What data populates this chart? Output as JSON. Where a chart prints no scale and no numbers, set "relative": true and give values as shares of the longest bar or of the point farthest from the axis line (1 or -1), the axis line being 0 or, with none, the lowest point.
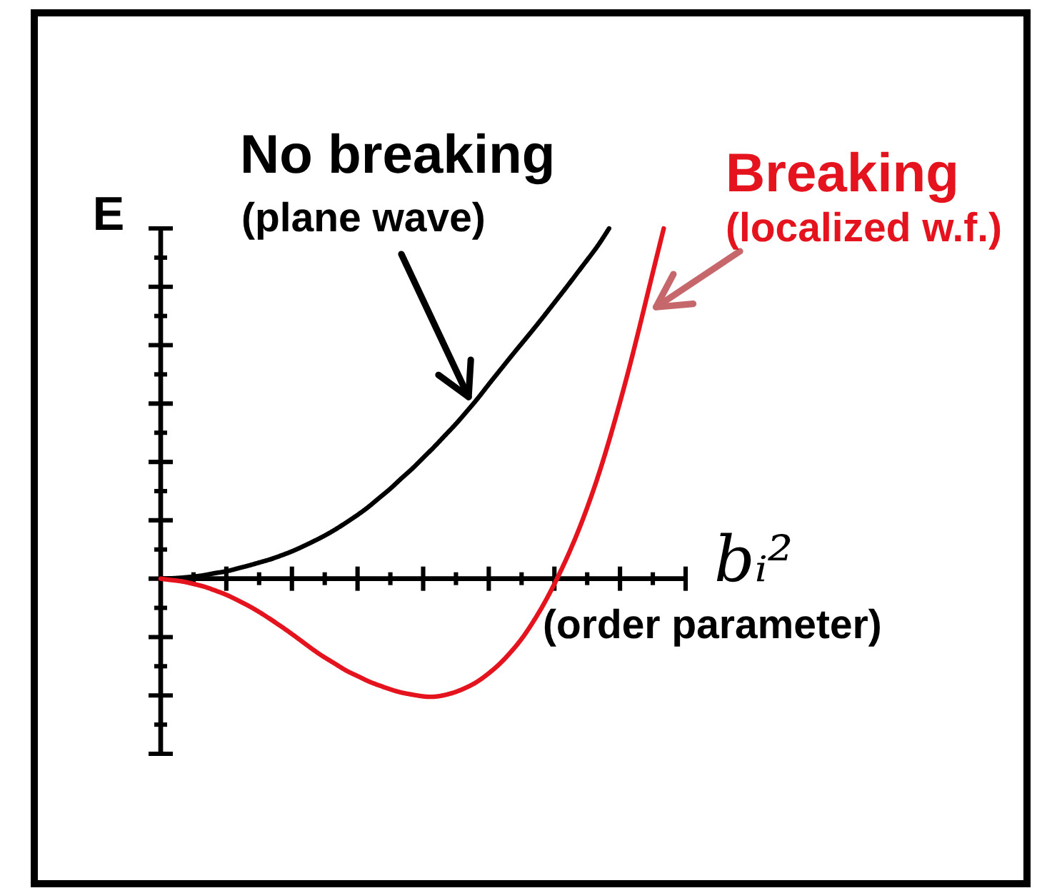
{
  "chart_data": {
    "type": "line",
    "relative": true,
    "xlabel": "bᵢ²",
    "ylabel": "E",
    "categories": [
      null,
      null,
      null,
      null,
      null,
      null,
      null,
      null,
      null,
      null,
      null,
      null,
      null,
      null,
      null,
      null,
      null,
      null,
      null,
      null,
      null,
      null,
      null,
      null,
      null,
      null,
      null,
      null,
      null,
      null,
      null,
      null,
      null,
      null,
      null,
      null,
      null,
      null,
      null,
      null,
      null,
      null,
      null,
      null,
      null,
      null,
      null,
      null,
      null
    ],
    "series": [
      {
        "name": "No breaking",
        "color": "#000000",
        "values": [
          0,
          0.001,
          0.003,
          0.006,
          0.01,
          0.016,
          0.021,
          0.029,
          0.037,
          0.046,
          0.055,
          0.066,
          0.078,
          0.092,
          0.107,
          0.123,
          0.141,
          0.161,
          0.182,
          0.205,
          0.231,
          0.257,
          0.286,
          0.314,
          0.345,
          0.376,
          0.409,
          0.442,
          0.478,
          0.515,
          0.555,
          0.594,
          0.633,
          0.671,
          0.709,
          0.748,
          0.788,
          0.828,
          0.869,
          0.91,
          0.952,
          1,
          null,
          null,
          null,
          null,
          null,
          null,
          null
        ]
      },
      {
        "name": "Breaking",
        "color": "#e5131d",
        "values": [
          0,
          -0.004,
          -0.008,
          -0.015,
          -0.023,
          -0.034,
          -0.046,
          -0.061,
          -0.077,
          -0.095,
          -0.115,
          -0.136,
          -0.158,
          -0.181,
          -0.204,
          -0.225,
          -0.244,
          -0.263,
          -0.278,
          -0.293,
          -0.305,
          -0.316,
          -0.325,
          -0.331,
          -0.336,
          -0.337,
          -0.332,
          -0.323,
          -0.31,
          -0.293,
          -0.27,
          -0.243,
          -0.21,
          -0.172,
          -0.126,
          -0.074,
          -0.015,
          0.05,
          0.122,
          0.203,
          0.293,
          0.394,
          0.504,
          0.621,
          0.746,
          0.874,
          1,
          null,
          null
        ]
      }
    ],
    "annotations": [
      "(plane wave)",
      "(localized w.f.)",
      "(order parameter)"
    ]
  }
}
